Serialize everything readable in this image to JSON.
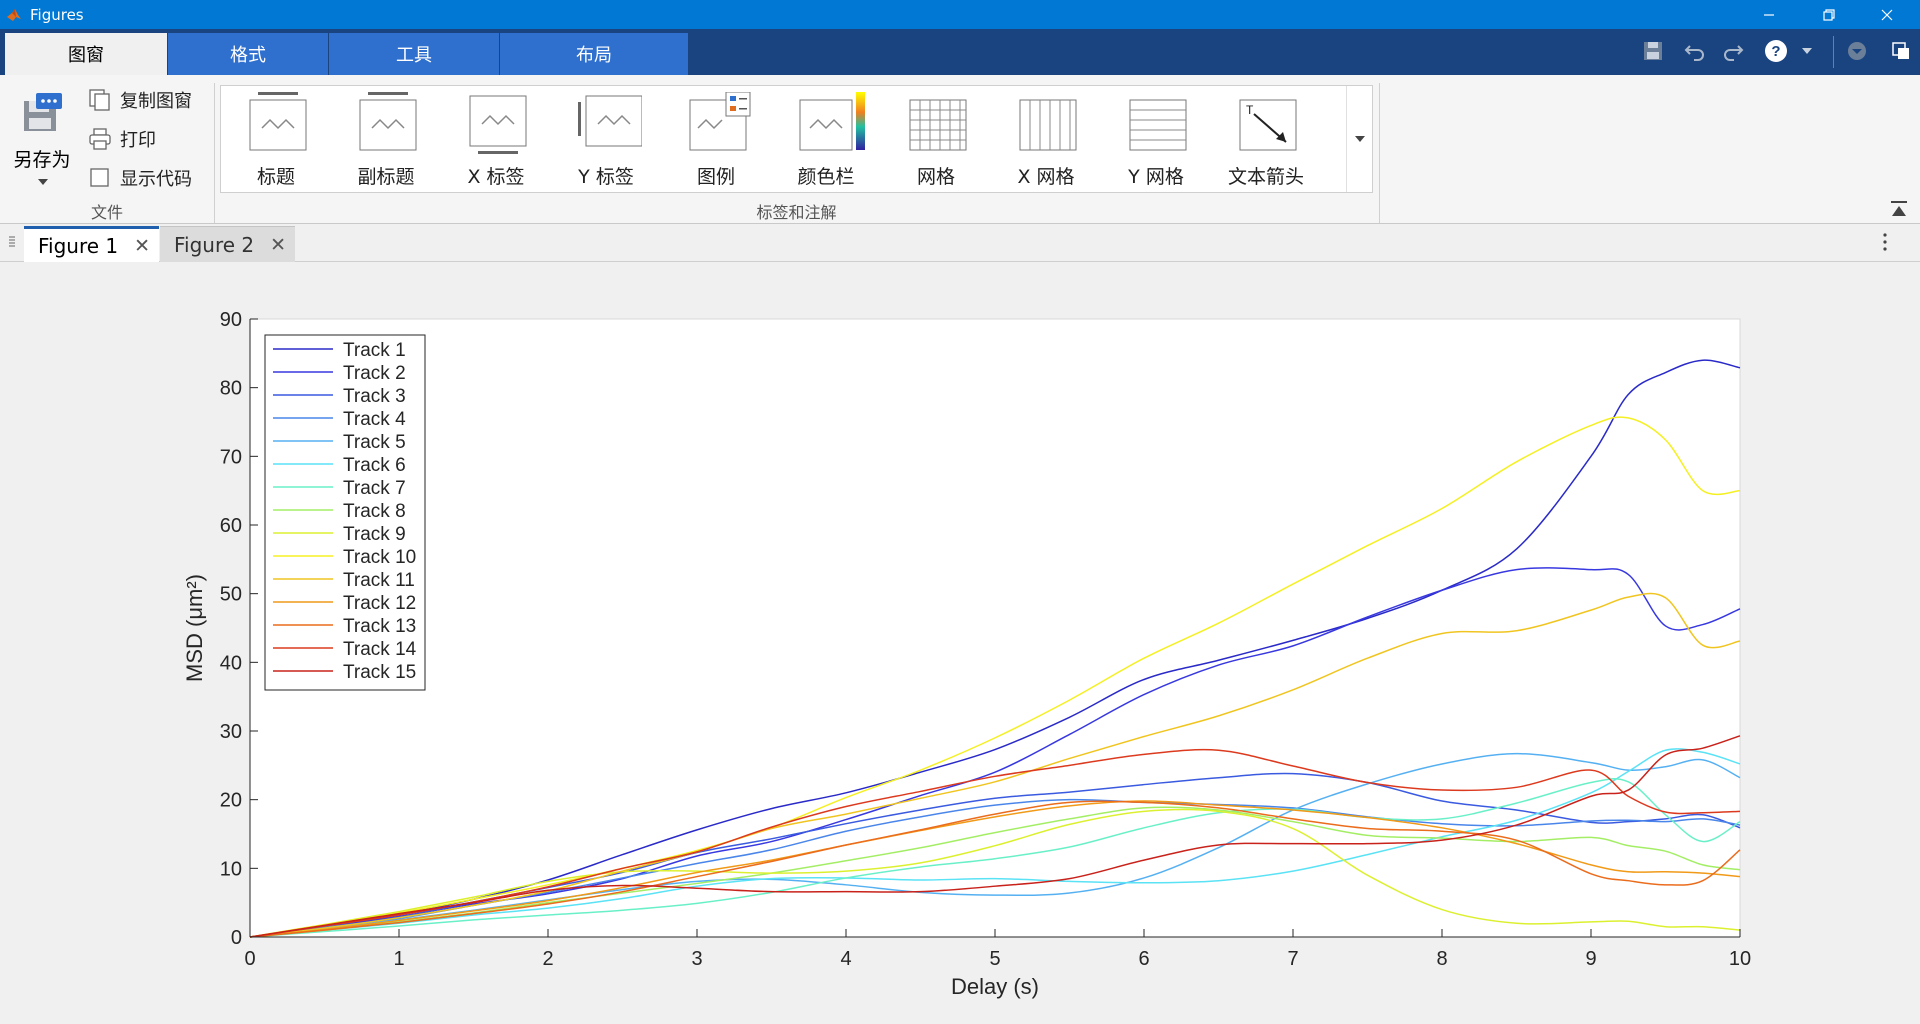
{
  "window": {
    "title": "Figures"
  },
  "ribbon_tabs": [
    {
      "label": "图窗",
      "active": true
    },
    {
      "label": "格式",
      "active": false
    },
    {
      "label": "工具",
      "active": false
    },
    {
      "label": "布局",
      "active": false
    }
  ],
  "file_section": {
    "label": "文件",
    "save_as": "另存为",
    "copy_figure": "复制图窗",
    "print": "打印",
    "show_code": "显示代码"
  },
  "annotations_section": {
    "label": "标签和注解",
    "items": [
      "标题",
      "副标题",
      "X 标签",
      "Y 标签",
      "图例",
      "颜色栏",
      "网格",
      "X 网格",
      "Y 网格",
      "文本箭头"
    ]
  },
  "doc_tabs": [
    {
      "label": "Figure 1",
      "active": true
    },
    {
      "label": "Figure 2",
      "active": false
    }
  ],
  "colors": {
    "accent": "#0078d4",
    "tabbar": "#1a4480",
    "tab": "#2f6fce"
  },
  "chart_data": {
    "type": "line",
    "title": "",
    "xlabel": "Delay (s)",
    "ylabel": "MSD  (μm²)",
    "xlim": [
      0,
      10
    ],
    "ylim": [
      0,
      90
    ],
    "xticks": [
      0,
      1,
      2,
      3,
      4,
      5,
      6,
      7,
      8,
      9,
      10
    ],
    "yticks": [
      0,
      10,
      20,
      30,
      40,
      50,
      60,
      70,
      80,
      90
    ],
    "grid": false,
    "legend_position": "top-left",
    "x": [
      0,
      0.5,
      1,
      1.5,
      2,
      2.5,
      3,
      3.5,
      4,
      4.5,
      5,
      5.5,
      6,
      6.5,
      7,
      7.5,
      8,
      8.5,
      9,
      9.25,
      9.5,
      9.75,
      10
    ],
    "series": [
      {
        "name": "Track 1",
        "color": "#2a2ac8",
        "values": [
          0,
          1.5,
          3.3,
          5.5,
          8.3,
          12,
          15.6,
          18.7,
          21,
          24,
          27.3,
          32,
          37.5,
          40.3,
          43.2,
          46.4,
          50.5,
          56.5,
          70,
          79,
          82.2,
          84,
          82.9
        ]
      },
      {
        "name": "Track 2",
        "color": "#3838e0",
        "values": [
          0,
          1.4,
          3,
          4.8,
          6.3,
          8.5,
          11.8,
          13.9,
          17.1,
          20.6,
          24,
          29.5,
          35.3,
          39.6,
          42.4,
          46.6,
          50.5,
          53.5,
          53.5,
          52.8,
          45.3,
          45.5,
          47.8
        ]
      },
      {
        "name": "Track 3",
        "color": "#3a5ae0",
        "values": [
          0,
          1.3,
          2.9,
          5.1,
          7.2,
          9.4,
          12.3,
          14.3,
          16.5,
          18.5,
          20.2,
          21.1,
          22.2,
          23.2,
          23.8,
          22.5,
          19.8,
          18.5,
          16.7,
          16.8,
          17.2,
          17.8,
          15.9
        ]
      },
      {
        "name": "Track 4",
        "color": "#4a86ea",
        "values": [
          0,
          1.4,
          2.7,
          4.6,
          6.5,
          8.6,
          10.7,
          12.7,
          15.4,
          17.5,
          19.2,
          20,
          19.6,
          19.3,
          18.8,
          17.5,
          16.5,
          16.2,
          16.9,
          17,
          16.8,
          17.2,
          16.3
        ]
      },
      {
        "name": "Track 5",
        "color": "#55b0f2",
        "values": [
          0,
          1.2,
          2.5,
          3.9,
          5.4,
          6.9,
          8.1,
          8.4,
          7.6,
          6.5,
          6.1,
          6.4,
          8.6,
          13,
          18.5,
          22.3,
          25.2,
          26.7,
          25.4,
          24.3,
          24.8,
          25.8,
          23.2
        ]
      },
      {
        "name": "Track 6",
        "color": "#5ae2f5",
        "values": [
          0,
          1,
          2,
          3.2,
          4.2,
          5.6,
          7.4,
          8.5,
          8.6,
          8.3,
          8.5,
          8.1,
          7.9,
          8.2,
          9.6,
          12,
          14.6,
          17,
          21,
          24.1,
          27.2,
          26.9,
          25.2
        ]
      },
      {
        "name": "Track 7",
        "color": "#6af0c8",
        "values": [
          0,
          0.8,
          1.6,
          2.5,
          3.2,
          3.9,
          4.9,
          6.5,
          8.6,
          10.2,
          11.4,
          13.1,
          15.9,
          18.1,
          18.6,
          17.4,
          17.2,
          19.5,
          22.5,
          22.6,
          17.8,
          13.9,
          16.8
        ]
      },
      {
        "name": "Track 8",
        "color": "#a4ee66",
        "values": [
          0,
          1,
          2.2,
          3.5,
          5,
          6.4,
          7.8,
          9.3,
          11.1,
          13,
          15.2,
          17.2,
          18.8,
          18.5,
          16.8,
          14.8,
          14.4,
          13.9,
          14.5,
          13.3,
          12.5,
          10.5,
          9.8
        ]
      },
      {
        "name": "Track 9",
        "color": "#dcf030",
        "values": [
          0,
          1.8,
          3.7,
          5.8,
          8.1,
          9.5,
          9.6,
          9.3,
          9.6,
          10.8,
          13.3,
          16.4,
          18.3,
          18.3,
          15.8,
          9,
          4,
          2,
          2.2,
          2.3,
          1.5,
          1.5,
          1
        ]
      },
      {
        "name": "Track 10",
        "color": "#f5f023",
        "values": [
          0,
          1.8,
          3.5,
          5.5,
          7.6,
          10,
          12.6,
          15.9,
          20.3,
          24.3,
          29,
          34.5,
          40.6,
          45.7,
          51.4,
          57,
          62.4,
          69.2,
          74.5,
          75.6,
          72.4,
          65,
          65
        ]
      },
      {
        "name": "Track 11",
        "color": "#f0c520",
        "values": [
          0,
          1.3,
          2.8,
          4.6,
          6.7,
          9.6,
          12.4,
          15.8,
          17.9,
          20.2,
          22.6,
          26,
          29.2,
          32.2,
          36,
          40.6,
          44.2,
          44.6,
          47.6,
          49.5,
          49.4,
          42.5,
          43.1
        ]
      },
      {
        "name": "Track 12",
        "color": "#f09a18",
        "values": [
          0,
          1.1,
          2.4,
          3.8,
          5.3,
          7.2,
          9.4,
          11.2,
          13.4,
          15.5,
          17.5,
          19.1,
          19.8,
          19.2,
          18.5,
          17.4,
          15.9,
          13.6,
          10.5,
          9.5,
          9.5,
          9.3,
          8.8
        ]
      },
      {
        "name": "Track 13",
        "color": "#ea6c1c",
        "values": [
          0,
          1,
          2.1,
          3.4,
          4.8,
          6.6,
          8.8,
          11,
          13.4,
          15.6,
          17.9,
          19.6,
          19.6,
          18.8,
          17.2,
          15.8,
          15.4,
          14.1,
          9.2,
          8.2,
          7.6,
          8.2,
          12.7
        ]
      },
      {
        "name": "Track 14",
        "color": "#dc3a1e",
        "values": [
          0,
          1.6,
          3.2,
          5.1,
          7.3,
          10,
          12.4,
          16,
          19,
          21.2,
          23.4,
          25,
          26.6,
          27.2,
          24.9,
          22.5,
          21.4,
          21.8,
          24.3,
          20.5,
          18.2,
          18.1,
          18.3
        ]
      },
      {
        "name": "Track 15",
        "color": "#c8221a",
        "values": [
          0,
          1.7,
          3.4,
          5,
          6.8,
          7.5,
          7.1,
          6.6,
          6.6,
          6.6,
          7.4,
          8.5,
          11.2,
          13.4,
          13.6,
          13.6,
          14.1,
          16.3,
          20.5,
          21.4,
          26.5,
          27.5,
          29.3
        ]
      }
    ]
  }
}
